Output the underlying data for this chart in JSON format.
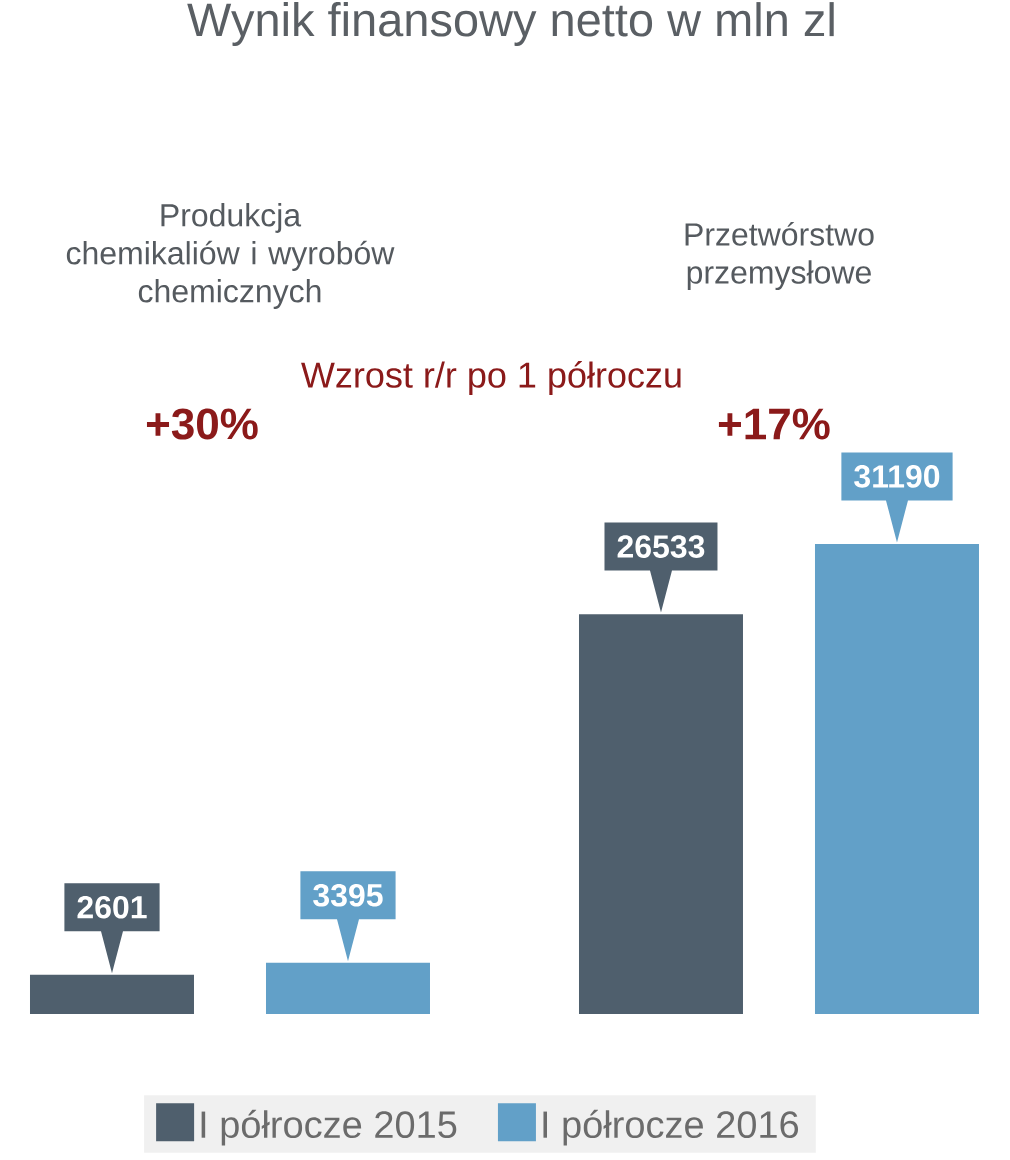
{
  "chart_data": {
    "type": "bar",
    "title": "Wynik finansowy netto w mln zl",
    "categories": [
      "Produkcja chemikaliów i wyrobów chemicznych",
      "Przetwórstwo przemysłowe"
    ],
    "series": [
      {
        "name": "I półrocze 2015",
        "color": "#4f5f6d",
        "values": [
          2601,
          26533
        ]
      },
      {
        "name": "I półrocze 2016",
        "color": "#62a0c8",
        "values": [
          3395,
          31190
        ]
      }
    ],
    "data_labels": true,
    "legend": "bottom",
    "annotations": [
      "Wzrost r/r po 1 półroczu",
      "+30%",
      "+17%"
    ]
  }
}
